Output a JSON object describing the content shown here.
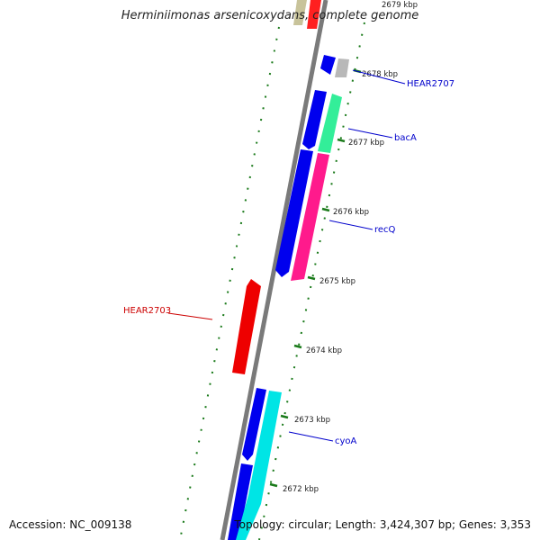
{
  "title": "Herminiimonas arsenicoxydans, complete genome",
  "footer": {
    "accession": "Accession: NC_009138",
    "topology": "Topology: circular; Length: 3,424,307 bp; Genes: 3,353"
  },
  "colors": {
    "backbone": "#808080",
    "tick": "#1a7a1a",
    "label_forward": "#0000cc",
    "label_reverse": "#cc0000"
  },
  "ticks": [
    {
      "label": "2679 kbp"
    },
    {
      "label": "2678 kbp"
    },
    {
      "label": "2677 kbp"
    },
    {
      "label": "2676 kbp"
    },
    {
      "label": "2675 kbp"
    },
    {
      "label": "2674 kbp"
    },
    {
      "label": "2673 kbp"
    },
    {
      "label": "2672 kbp"
    }
  ],
  "gene_labels": [
    {
      "name": "HEAR2707"
    },
    {
      "name": "bacA"
    },
    {
      "name": "recQ"
    },
    {
      "name": "HEAR2703"
    },
    {
      "name": "cyoA"
    }
  ]
}
